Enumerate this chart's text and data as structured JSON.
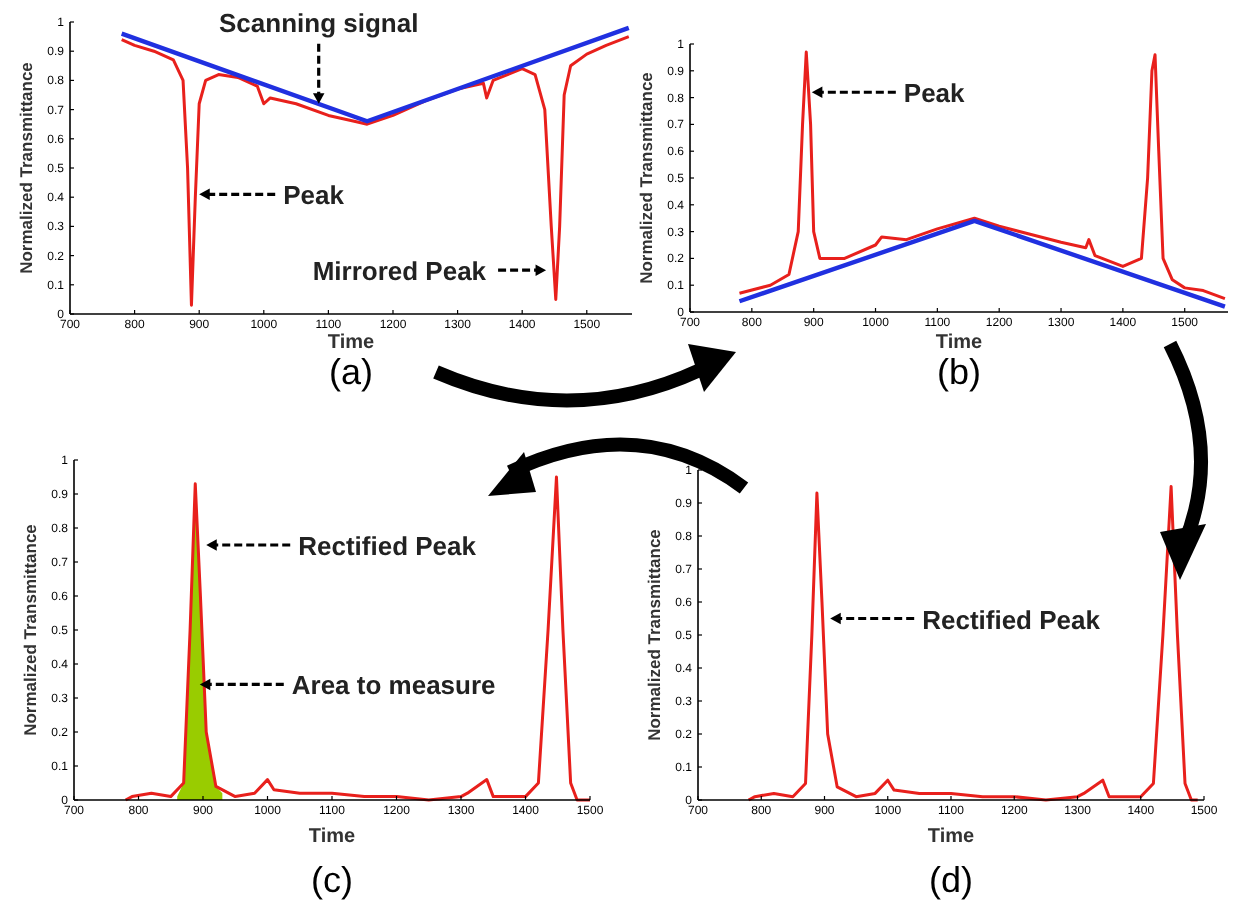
{
  "chart_data": [
    {
      "type": "line",
      "xlabel": "Time",
      "ylabel": "Normalized Transmittance",
      "xlim": [
        700,
        1570
      ],
      "ylim": [
        0,
        1
      ],
      "xticks": [
        700,
        800,
        900,
        1000,
        1100,
        1200,
        1300,
        1400,
        1500
      ],
      "yticks": [
        0,
        0.1,
        0.2,
        0.3,
        0.4,
        0.5,
        0.6,
        0.7,
        0.8,
        0.9,
        1
      ],
      "grid": false,
      "series": [
        {
          "color": "#e8201c",
          "x": [
            780,
            800,
            830,
            860,
            875,
            882,
            888,
            894,
            900,
            910,
            930,
            960,
            990,
            1000,
            1010,
            1050,
            1100,
            1140,
            1160,
            1200,
            1250,
            1300,
            1340,
            1345,
            1355,
            1400,
            1420,
            1435,
            1445,
            1452,
            1458,
            1465,
            1475,
            1500,
            1530,
            1565
          ],
          "values": [
            0.94,
            0.92,
            0.9,
            0.87,
            0.8,
            0.5,
            0.03,
            0.4,
            0.72,
            0.8,
            0.82,
            0.81,
            0.78,
            0.72,
            0.74,
            0.72,
            0.68,
            0.66,
            0.65,
            0.68,
            0.73,
            0.77,
            0.79,
            0.74,
            0.8,
            0.84,
            0.82,
            0.7,
            0.3,
            0.05,
            0.3,
            0.75,
            0.85,
            0.89,
            0.92,
            0.95
          ]
        },
        {
          "color": "#2030e0",
          "x": [
            780,
            1160,
            1565
          ],
          "values": [
            0.96,
            0.66,
            0.98
          ]
        }
      ],
      "annotations": [
        {
          "text": "Scanning signal",
          "x": 1085,
          "y": 0.72
        },
        {
          "text": "Peak",
          "x": 900,
          "y": 0.41
        },
        {
          "text": "Mirrored Peak",
          "x": 1437,
          "y": 0.15
        },
        "(a)"
      ]
    },
    {
      "type": "line",
      "xlabel": "Time",
      "ylabel": "Normalized Transmittance",
      "xlim": [
        700,
        1570
      ],
      "ylim": [
        0,
        1
      ],
      "xticks": [
        700,
        800,
        900,
        1000,
        1100,
        1200,
        1300,
        1400,
        1500
      ],
      "yticks": [
        0,
        0.1,
        0.2,
        0.3,
        0.4,
        0.5,
        0.6,
        0.7,
        0.8,
        0.9,
        1
      ],
      "grid": false,
      "series": [
        {
          "color": "#e8201c",
          "x": [
            780,
            830,
            860,
            875,
            882,
            888,
            895,
            900,
            910,
            950,
            1000,
            1010,
            1050,
            1100,
            1160,
            1200,
            1250,
            1300,
            1340,
            1345,
            1355,
            1400,
            1430,
            1440,
            1447,
            1452,
            1458,
            1465,
            1480,
            1500,
            1530,
            1565
          ],
          "values": [
            0.07,
            0.1,
            0.14,
            0.3,
            0.7,
            0.97,
            0.7,
            0.3,
            0.2,
            0.2,
            0.25,
            0.28,
            0.27,
            0.31,
            0.35,
            0.32,
            0.29,
            0.26,
            0.24,
            0.27,
            0.21,
            0.17,
            0.2,
            0.5,
            0.9,
            0.96,
            0.6,
            0.2,
            0.12,
            0.09,
            0.08,
            0.05
          ]
        },
        {
          "color": "#2030e0",
          "x": [
            780,
            1160,
            1565
          ],
          "values": [
            0.04,
            0.34,
            0.02
          ]
        }
      ],
      "annotations": [
        {
          "text": "Peak",
          "x": 897,
          "y": 0.82
        },
        "(b)"
      ]
    },
    {
      "type": "line",
      "xlabel": "Time",
      "ylabel": "Normalized Transmittance",
      "xlim": [
        700,
        1500
      ],
      "ylim": [
        0,
        1
      ],
      "xticks": [
        700,
        800,
        900,
        1000,
        1100,
        1200,
        1300,
        1400,
        1500
      ],
      "yticks": [
        0,
        0.1,
        0.2,
        0.3,
        0.4,
        0.5,
        0.6,
        0.7,
        0.8,
        0.9,
        1
      ],
      "grid": false,
      "series": [
        {
          "type": "area",
          "color": "#99cc00",
          "x": [
            860,
            870,
            880,
            888,
            896,
            905,
            920,
            930
          ],
          "values": [
            0.01,
            0.05,
            0.5,
            0.93,
            0.6,
            0.2,
            0.04,
            0.02
          ]
        },
        {
          "color": "#e8201c",
          "x": [
            780,
            790,
            820,
            850,
            870,
            880,
            888,
            896,
            905,
            920,
            950,
            980,
            1000,
            1010,
            1050,
            1100,
            1150,
            1200,
            1250,
            1300,
            1310,
            1340,
            1350,
            1400,
            1420,
            1435,
            1448,
            1458,
            1470,
            1480,
            1500
          ],
          "values": [
            0,
            0.01,
            0.02,
            0.01,
            0.05,
            0.5,
            0.93,
            0.6,
            0.2,
            0.04,
            0.01,
            0.02,
            0.06,
            0.03,
            0.02,
            0.02,
            0.01,
            0.01,
            0,
            0.01,
            0.02,
            0.06,
            0.01,
            0.01,
            0.05,
            0.5,
            0.95,
            0.5,
            0.05,
            0,
            0
          ]
        }
      ],
      "annotations": [
        {
          "text": "Rectified Peak",
          "x": 905,
          "y": 0.75
        },
        {
          "text": "Area to measure",
          "x": 895,
          "y": 0.34
        },
        "(c)"
      ]
    },
    {
      "type": "line",
      "xlabel": "Time",
      "ylabel": "Normalized Transmittance",
      "xlim": [
        700,
        1500
      ],
      "ylim": [
        0,
        1
      ],
      "xticks": [
        700,
        800,
        900,
        1000,
        1100,
        1200,
        1300,
        1400,
        1500
      ],
      "yticks": [
        0,
        0.1,
        0.2,
        0.3,
        0.4,
        0.5,
        0.6,
        0.7,
        0.8,
        0.9,
        1
      ],
      "grid": false,
      "series": [
        {
          "color": "#e8201c",
          "x": [
            780,
            790,
            820,
            850,
            870,
            880,
            888,
            896,
            905,
            920,
            950,
            980,
            1000,
            1010,
            1050,
            1100,
            1150,
            1200,
            1250,
            1300,
            1310,
            1340,
            1350,
            1400,
            1420,
            1435,
            1448,
            1458,
            1470,
            1480,
            1490
          ],
          "values": [
            0,
            0.01,
            0.02,
            0.01,
            0.05,
            0.5,
            0.93,
            0.6,
            0.2,
            0.04,
            0.01,
            0.02,
            0.06,
            0.03,
            0.02,
            0.02,
            0.01,
            0.01,
            0,
            0.01,
            0.02,
            0.06,
            0.01,
            0.01,
            0.05,
            0.5,
            0.95,
            0.5,
            0.05,
            0,
            0
          ]
        }
      ],
      "annotations": [
        {
          "text": "Rectified Peak",
          "x": 909,
          "y": 0.55
        },
        "(d)"
      ]
    }
  ]
}
